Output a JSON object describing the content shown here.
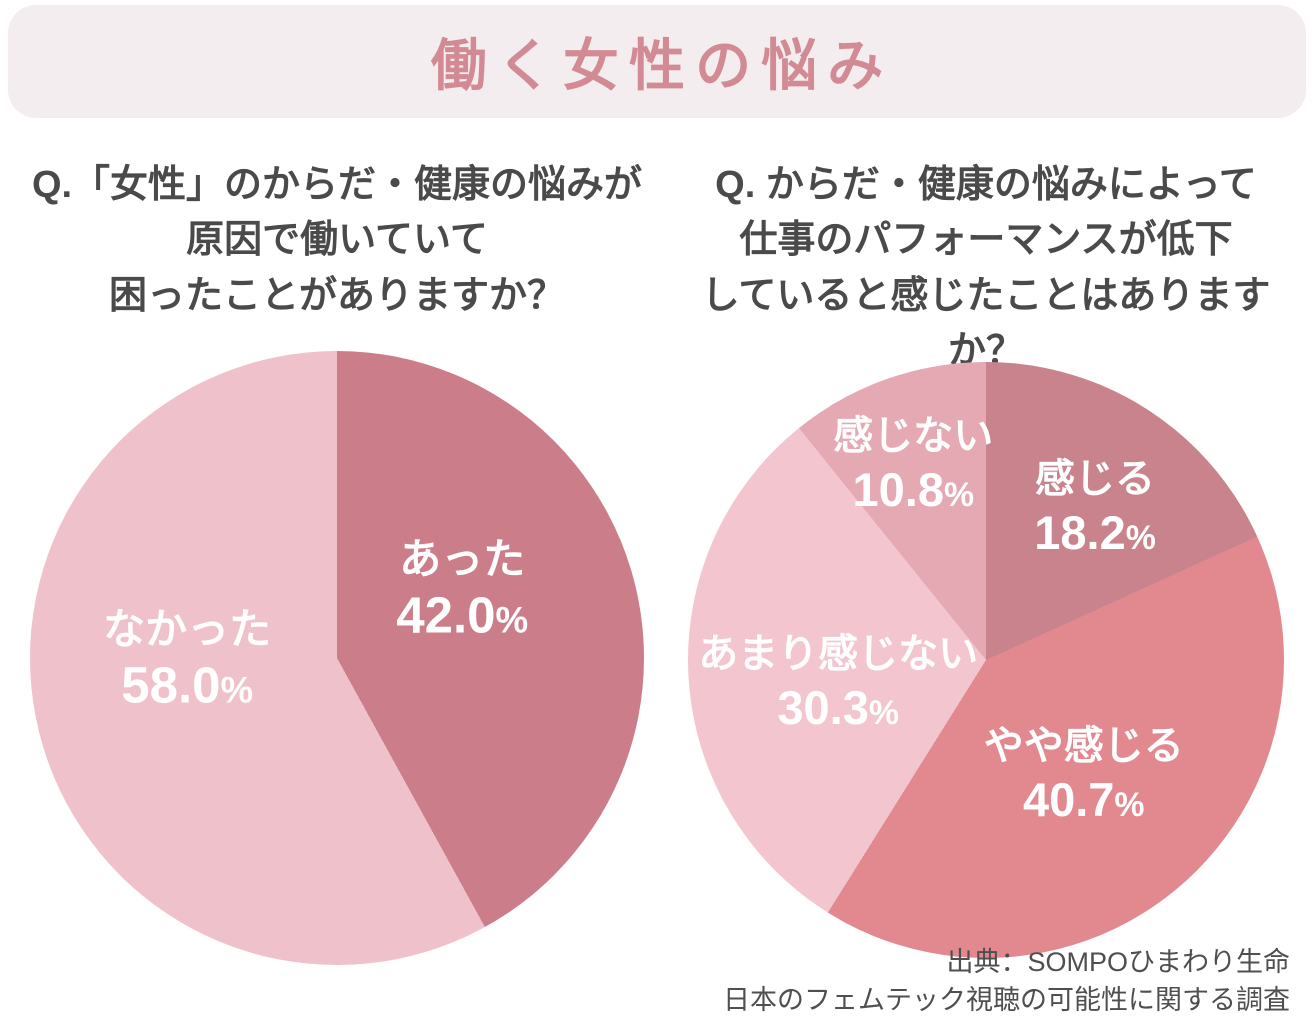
{
  "header": {
    "title": "働く女性の悩み",
    "banner_bg": "#f4edef",
    "title_color": "#d28b94"
  },
  "chart_data": [
    {
      "type": "pie",
      "title": "Q.「女性」のからだ・健康の悩みが原因で働いていて困ったことがありますか？",
      "question_lines": [
        "Q.「女性」のからだ・健康の悩みが",
        "原因で働いていて",
        "困ったことがありますか？"
      ],
      "start_angle_deg": 0,
      "direction": "clockwise",
      "legend_position": "none",
      "labels_position": "inside",
      "label_color": "#ffffff",
      "slices": [
        {
          "label": "あった",
          "value": 42.0,
          "color": "#cb7e89",
          "label_pos": {
            "x": 70.4,
            "y": 38.9
          }
        },
        {
          "label": "なかった",
          "value": 58.0,
          "color": "#efc1cb",
          "label_pos": {
            "x": 25.6,
            "y": 50.3
          }
        }
      ]
    },
    {
      "type": "pie",
      "title": "Q. からだ・健康の悩みによって仕事のパフォーマンスが低下していると感じたことはありますか？",
      "question_lines": [
        "Q. からだ・健康の悩みによって",
        "仕事のパフォーマンスが低下",
        "していると感じたことはありますか？"
      ],
      "start_angle_deg": 0,
      "direction": "clockwise",
      "legend_position": "none",
      "labels_position": "inside",
      "label_color": "#ffffff",
      "slices": [
        {
          "label": "感じる",
          "value": 18.2,
          "color": "#c9838d",
          "label_pos": {
            "x": 68.3,
            "y": 24.5
          }
        },
        {
          "label": "やや感じる",
          "value": 40.7,
          "color": "#e2898f",
          "label_pos": {
            "x": 66.4,
            "y": 69.3
          }
        },
        {
          "label": "あまり感じない",
          "value": 30.3,
          "color": "#f3c5cf",
          "label_pos": {
            "x": 25.2,
            "y": 53.9
          }
        },
        {
          "label": "感じない",
          "value": 10.8,
          "color": "#e5a9b3",
          "label_pos": {
            "x": 37.8,
            "y": 17.3
          }
        }
      ]
    }
  ],
  "footer": {
    "lines": [
      "出典：SOMPOひまわり生命",
      "日本のフェムテック視聴の可能性に関する調査"
    ]
  }
}
